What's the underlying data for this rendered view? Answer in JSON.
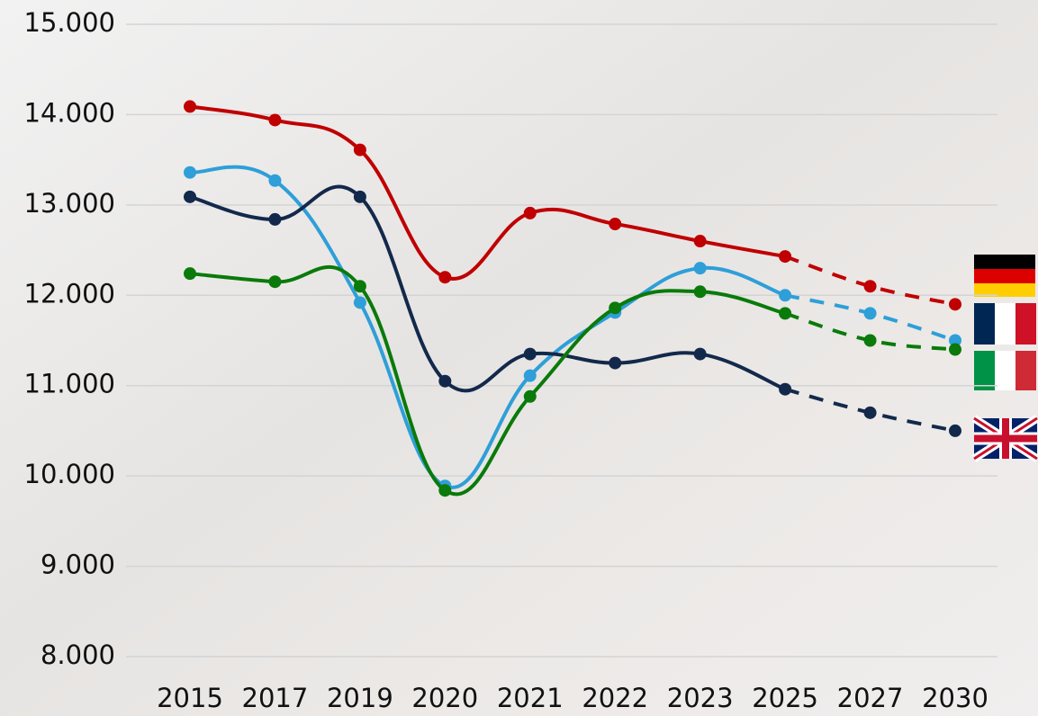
{
  "chart_data": {
    "type": "line",
    "categories": [
      "2015",
      "2017",
      "2019",
      "2020",
      "2021",
      "2022",
      "2023",
      "2025",
      "2027",
      "2030"
    ],
    "series": [
      {
        "color": "#c00000",
        "values": [
          14090,
          13940,
          13610,
          12200,
          12910,
          12790,
          12600,
          12430,
          12100,
          11900
        ]
      },
      {
        "color": "#2e9fd8",
        "values": [
          13360,
          13270,
          11920,
          9890,
          11110,
          11810,
          12300,
          12000,
          11800,
          11500
        ]
      },
      {
        "color": "#13294b",
        "values": [
          13090,
          12840,
          13090,
          11050,
          11350,
          11250,
          11350,
          10960,
          10700,
          10500
        ]
      },
      {
        "color": "#0a7a0a",
        "values": [
          12240,
          12150,
          12100,
          9840,
          10880,
          11860,
          12040,
          11800,
          11500,
          11400
        ]
      }
    ],
    "dashed_from": "2025",
    "ylim": [
      8000,
      15000
    ],
    "yticks": [
      {
        "value": 8000,
        "label": "8.000"
      },
      {
        "value": 9000,
        "label": "9.000"
      },
      {
        "value": 10000,
        "label": "10.000"
      },
      {
        "value": 11000,
        "label": "11.000"
      },
      {
        "value": 12000,
        "label": "12.000"
      },
      {
        "value": 13000,
        "label": "13.000"
      },
      {
        "value": 14000,
        "label": "14.000"
      },
      {
        "value": 15000,
        "label": "15.000"
      }
    ],
    "grid": true
  }
}
